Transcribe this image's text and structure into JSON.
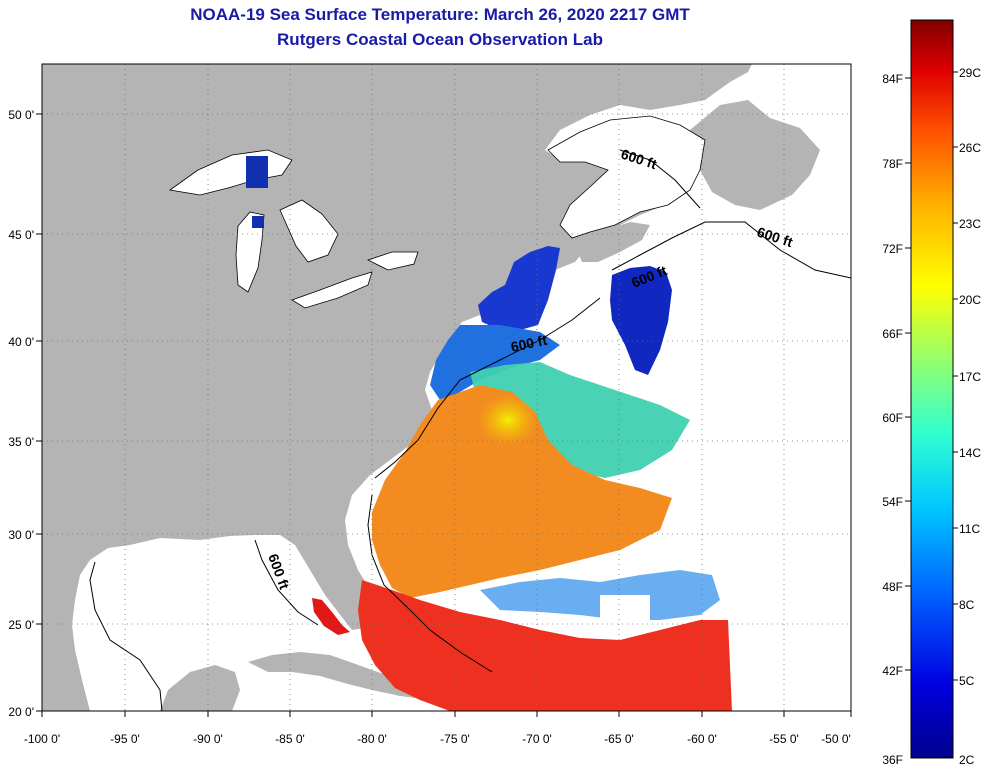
{
  "header": {
    "title": "NOAA-19 Sea Surface Temperature:  March 26, 2020 2217 GMT",
    "subtitle": "Rutgers Coastal Ocean Observation Lab"
  },
  "map": {
    "x_ticks": [
      "-100 0'",
      "-95 0'",
      "-90 0'",
      "-85 0'",
      "-80 0'",
      "-75 0'",
      "-70 0'",
      "-65 0'",
      "-60 0'",
      "-55 0'",
      "-50 0'"
    ],
    "y_ticks": [
      "50 0'",
      "45 0'",
      "40 0'",
      "35 0'",
      "30 0'",
      "25 0'",
      "20 0'"
    ],
    "contour_labels": [
      "600 ft",
      "600 ft",
      "600 ft",
      "600 ft",
      "600 ft"
    ],
    "colors": {
      "land": "#b4b4b4",
      "no_data": "#ffffff"
    }
  },
  "colorbar": {
    "f_labels": [
      "84F",
      "78F",
      "72F",
      "66F",
      "60F",
      "54F",
      "48F",
      "42F",
      "36F"
    ],
    "c_labels": [
      "29C",
      "26C",
      "23C",
      "20C",
      "17C",
      "14C",
      "11C",
      "8C",
      "5C",
      "2C"
    ]
  }
}
